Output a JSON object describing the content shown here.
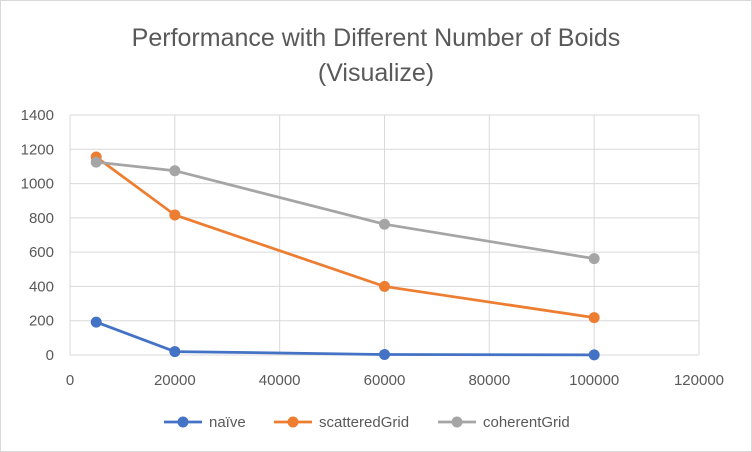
{
  "chart_data": {
    "type": "scatter",
    "title_lines": [
      "Performance with Different Number of Boids",
      "(Visualize)"
    ],
    "xlabel": "",
    "ylabel": "",
    "xlim": [
      0,
      120000
    ],
    "ylim": [
      0,
      1400
    ],
    "x_ticks": [
      0,
      20000,
      40000,
      60000,
      80000,
      100000,
      120000
    ],
    "y_ticks": [
      0,
      200,
      400,
      600,
      800,
      1000,
      1200,
      1400
    ],
    "grid": true,
    "legend_position": "bottom",
    "series": [
      {
        "name": "naïve",
        "color": "#4472c4",
        "points": [
          [
            5000,
            192
          ],
          [
            20000,
            20
          ],
          [
            60000,
            3
          ],
          [
            100000,
            1
          ]
        ]
      },
      {
        "name": "scatteredGrid",
        "color": "#ed7d31",
        "points": [
          [
            5000,
            1155
          ],
          [
            20000,
            817
          ],
          [
            60000,
            400
          ],
          [
            100000,
            218
          ]
        ]
      },
      {
        "name": "coherentGrid",
        "color": "#a5a5a5",
        "points": [
          [
            5000,
            1125
          ],
          [
            20000,
            1075
          ],
          [
            60000,
            763
          ],
          [
            100000,
            562
          ]
        ]
      }
    ]
  }
}
